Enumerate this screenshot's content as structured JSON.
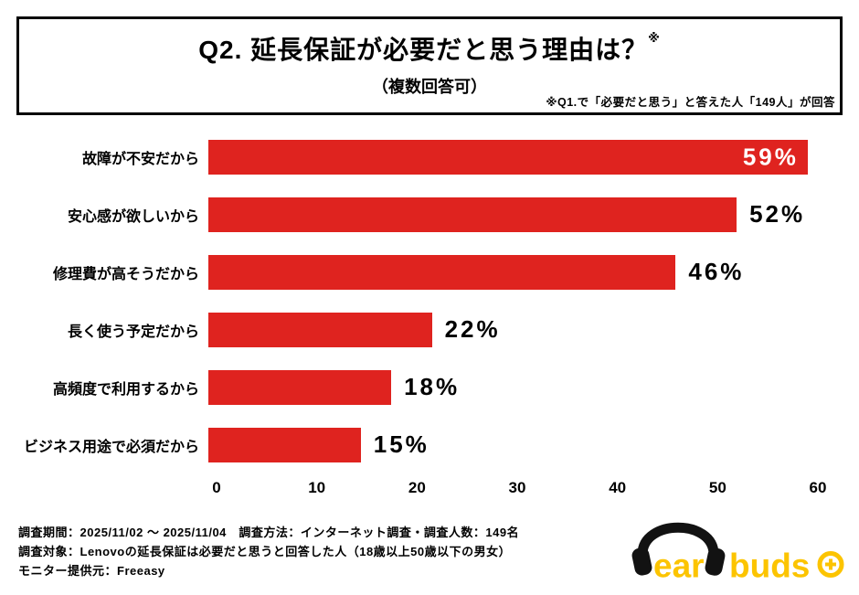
{
  "header": {
    "title": "Q2. 延長保証が必要だと思う理由は？",
    "title_mark": "※",
    "subtitle": "（複数回答可）",
    "note": "※Q1.で「必要だと思う」と答えた人「149人」が回答"
  },
  "chart_data": {
    "type": "bar",
    "orientation": "horizontal",
    "title": "Q2. 延長保証が必要だと思う理由は？（複数回答可）",
    "categories": [
      "故障が不安だから",
      "安心感が欲しいから",
      "修理費が高そうだから",
      "長く使う予定だから",
      "高頻度で利用するから",
      "ビジネス用途で必須だから"
    ],
    "values": [
      59,
      52,
      46,
      22,
      18,
      15
    ],
    "value_suffix": "%",
    "xlim": [
      0,
      60
    ],
    "xticks": [
      0,
      10,
      20,
      30,
      40,
      50,
      60
    ],
    "bar_color": "#df231f",
    "inside_label_threshold": 0.93,
    "grid": false,
    "legend": false
  },
  "footer": {
    "line1": "調査期間：2025/11/02 ～ 2025/11/04　調査方法：インターネット調査・調査人数：149名",
    "line2": "調査対象：Lenovoの延長保証は必要だと思うと回答した人（18歳以上50歳以下の男女）",
    "line3": "モニター提供元：Freeasy"
  },
  "logo": {
    "text1": "ear",
    "text2": "buds",
    "color": "#fcc400"
  }
}
